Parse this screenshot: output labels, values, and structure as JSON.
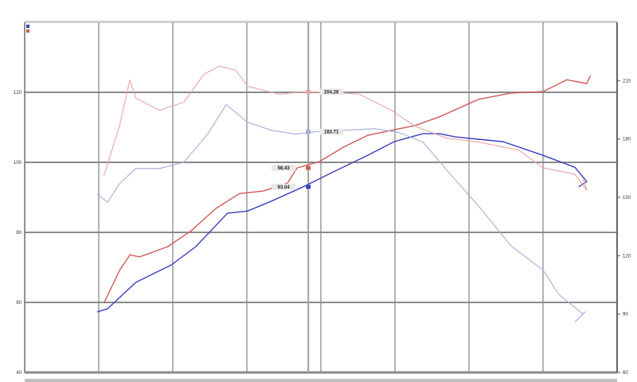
{
  "chart_data": {
    "type": "line",
    "grid": true,
    "legend_placement": "top-left",
    "xlim": [
      -0.0,
      8.0
    ],
    "x_gridlines": [
      0,
      1,
      2,
      3,
      4,
      5,
      6,
      7,
      8
    ],
    "y_left": {
      "ylim": [
        40,
        140
      ],
      "ticks": [
        40,
        60,
        80,
        100,
        120
      ]
    },
    "y_right": {
      "ylim": [
        60,
        240
      ],
      "ticks": [
        60,
        90,
        120,
        150,
        180,
        210
      ]
    },
    "cursor_x": 3.83,
    "colors": {
      "run1_power": "#3a3fc0",
      "run2_power": "#d05a5a",
      "run1_torque": "#a9acd8",
      "run2_torque": "#e6a6a6",
      "grid": "#8a8a8a"
    },
    "series": [
      {
        "key": "run1_power",
        "axis": "left",
        "x": [
          0.98,
          1.12,
          1.5,
          1.98,
          2.31,
          2.74,
          3.01,
          3.33,
          3.76,
          4.19,
          4.63,
          4.99,
          5.38,
          5.6,
          5.81,
          6.13,
          6.46,
          7.0,
          7.43,
          7.59,
          7.48
        ],
        "y": [
          57.3,
          58.2,
          65.7,
          70.7,
          75.9,
          85.5,
          86.1,
          88.9,
          93.0,
          97.5,
          102.0,
          105.9,
          108.2,
          108.2,
          107.3,
          106.6,
          105.9,
          102.0,
          98.6,
          94.5,
          93.0
        ]
      },
      {
        "key": "run2_power",
        "axis": "left",
        "x": [
          1.07,
          1.28,
          1.42,
          1.55,
          1.93,
          2.25,
          2.58,
          2.9,
          3.22,
          3.55,
          3.68,
          3.98,
          4.3,
          4.63,
          4.99,
          5.27,
          5.6,
          6.13,
          6.57,
          7.0,
          7.32,
          7.59,
          7.64
        ],
        "y": [
          59.8,
          69.1,
          73.6,
          73.0,
          75.9,
          80.5,
          86.8,
          91.1,
          91.8,
          94.1,
          98.4,
          100.2,
          104.3,
          107.7,
          109.3,
          110.5,
          113.0,
          118.0,
          119.8,
          120.2,
          123.6,
          122.5,
          124.8
        ]
      },
      {
        "key": "run1_torque",
        "axis": "right",
        "x": [
          0.98,
          1.12,
          1.28,
          1.5,
          1.82,
          2.15,
          2.47,
          2.72,
          3.01,
          3.33,
          3.66,
          3.92,
          4.3,
          4.73,
          5.06,
          5.38,
          5.7,
          6.13,
          6.57,
          7.0,
          7.21,
          7.54,
          7.57,
          7.43
        ],
        "y": [
          151.6,
          147.5,
          157.0,
          164.8,
          164.8,
          168.1,
          182.5,
          197.7,
          188.6,
          184.5,
          182.5,
          183.7,
          184.5,
          185.3,
          183.3,
          178.4,
          164.0,
          145.5,
          125.0,
          112.6,
          100.3,
          90.0,
          91.2,
          85.9
        ]
      },
      {
        "key": "run2_torque",
        "axis": "right",
        "x": [
          1.07,
          1.28,
          1.42,
          1.5,
          1.82,
          2.15,
          2.42,
          2.63,
          2.85,
          3.01,
          3.22,
          3.44,
          3.66,
          3.82,
          4.19,
          4.52,
          4.95,
          5.27,
          5.7,
          6.13,
          6.67,
          7.0,
          7.43,
          7.59,
          7.54
        ],
        "y": [
          161.1,
          186.6,
          210.4,
          201.0,
          194.8,
          198.9,
          213.3,
          217.4,
          215.4,
          207.1,
          205.1,
          203.0,
          203.9,
          204.3,
          203.9,
          203.0,
          194.8,
          186.6,
          180.4,
          178.4,
          174.3,
          165.2,
          161.9,
          153.7,
          159.9
        ]
      }
    ],
    "cursor_labels": [
      {
        "series": "run2_torque",
        "axis": "right",
        "y": 204.3,
        "text": "204.28",
        "side": "right"
      },
      {
        "series": "run1_torque",
        "axis": "right",
        "y": 183.7,
        "text": "183.71",
        "side": "right"
      },
      {
        "series": "run2_power",
        "axis": "left",
        "y": 98.4,
        "text": "98.43",
        "side": "left"
      },
      {
        "series": "run1_power",
        "axis": "left",
        "y": 93.0,
        "text": "93.04",
        "side": "left"
      }
    ]
  }
}
